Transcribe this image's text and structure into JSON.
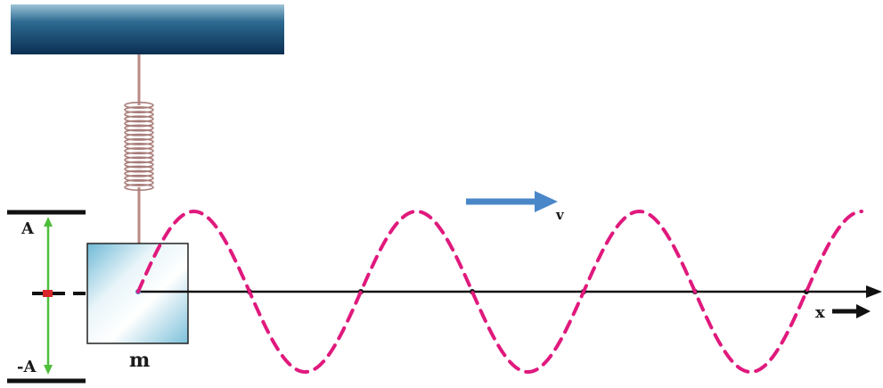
{
  "labels": {
    "amplitude_top": "A",
    "amplitude_bottom": "-A",
    "mass": "m",
    "velocity": "v",
    "axis": "x"
  },
  "colors": {
    "ceiling_dark": "#0b2f52",
    "ceiling_light": "#8fb7cc",
    "spring": "#b98a86",
    "wave": "#e0197d",
    "velocity_arrow": "#4a87c9",
    "amplitude_arrow": "#4fbf3a",
    "equilibrium_marker": "#d8262a",
    "axis": "#111111",
    "mass_fill": "#d9eef5",
    "mass_tint": "#6fb9d6"
  },
  "icons": {
    "velocity": "arrow-right-icon",
    "axis_direction": "arrow-right-icon"
  }
}
